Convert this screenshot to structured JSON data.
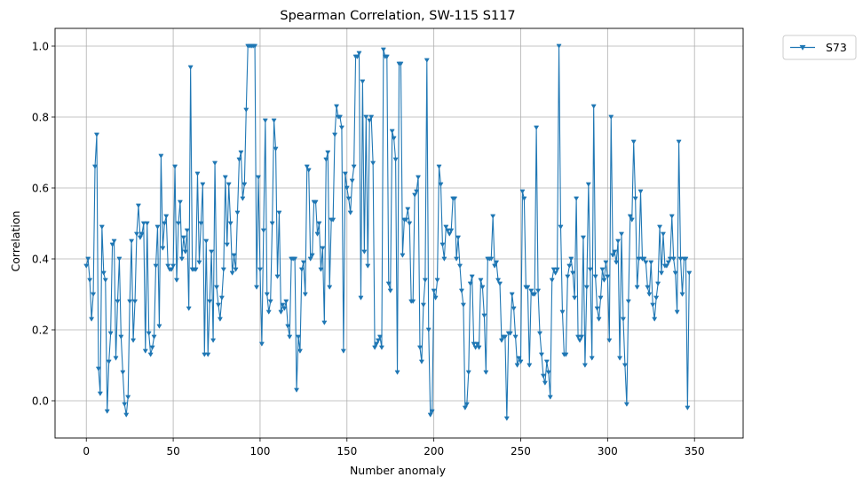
{
  "chart_data": {
    "type": "line",
    "title": "Spearman Correlation, SW-115  S117",
    "xlabel": "Number anomaly",
    "ylabel": "Correlation",
    "xlim": [
      -18,
      378
    ],
    "ylim": [
      -0.105,
      1.05
    ],
    "xticks": [
      0,
      50,
      100,
      150,
      200,
      250,
      300,
      350
    ],
    "yticks": [
      0.0,
      0.2,
      0.4,
      0.6,
      0.8,
      1.0
    ],
    "xtick_labels": [
      "0",
      "50",
      "100",
      "150",
      "200",
      "250",
      "300",
      "350"
    ],
    "ytick_labels": [
      "0.0",
      "0.2",
      "0.4",
      "0.6",
      "0.8",
      "1.0"
    ],
    "grid": true,
    "legend_position": "upper-right-outside",
    "marker": "triangle-down",
    "series": [
      {
        "name": "S73",
        "color": "#1f77b4",
        "x_start": 0,
        "values": [
          0.38,
          0.4,
          0.34,
          0.23,
          0.3,
          0.66,
          0.75,
          0.09,
          0.02,
          0.49,
          0.36,
          0.34,
          -0.03,
          0.11,
          0.19,
          0.44,
          0.45,
          0.12,
          0.28,
          0.4,
          0.18,
          0.08,
          -0.01,
          -0.04,
          0.01,
          0.28,
          0.45,
          0.17,
          0.28,
          0.47,
          0.55,
          0.46,
          0.47,
          0.5,
          0.14,
          0.5,
          0.19,
          0.13,
          0.15,
          0.18,
          0.38,
          0.49,
          0.21,
          0.69,
          0.43,
          0.5,
          0.52,
          0.38,
          0.37,
          0.37,
          0.38,
          0.66,
          0.34,
          0.5,
          0.56,
          0.4,
          0.46,
          0.42,
          0.48,
          0.26,
          0.94,
          0.37,
          0.37,
          0.37,
          0.64,
          0.39,
          0.5,
          0.61,
          0.13,
          0.45,
          0.13,
          0.28,
          0.42,
          0.17,
          0.67,
          0.32,
          0.27,
          0.23,
          0.29,
          0.37,
          0.63,
          0.44,
          0.61,
          0.5,
          0.36,
          0.41,
          0.37,
          0.53,
          0.68,
          0.7,
          0.57,
          0.61,
          0.82,
          1.0,
          1.0,
          1.0,
          1.0,
          1.0,
          0.32,
          0.63,
          0.37,
          0.16,
          0.48,
          0.79,
          0.3,
          0.25,
          0.28,
          0.5,
          0.79,
          0.71,
          0.35,
          0.53,
          0.25,
          0.27,
          0.26,
          0.28,
          0.21,
          0.18,
          0.4,
          0.4,
          0.4,
          0.03,
          0.18,
          0.14,
          0.37,
          0.39,
          0.3,
          0.66,
          0.65,
          0.4,
          0.41,
          0.56,
          0.56,
          0.47,
          0.5,
          0.37,
          0.43,
          0.22,
          0.68,
          0.7,
          0.32,
          0.51,
          0.51,
          0.75,
          0.83,
          0.8,
          0.8,
          0.77,
          0.14,
          0.64,
          0.6,
          0.57,
          0.53,
          0.62,
          0.66,
          0.97,
          0.97,
          0.98,
          0.29,
          0.9,
          0.42,
          0.8,
          0.38,
          0.79,
          0.8,
          0.67,
          0.15,
          0.16,
          0.17,
          0.18,
          0.15,
          0.99,
          0.97,
          0.97,
          0.33,
          0.31,
          0.76,
          0.74,
          0.68,
          0.08,
          0.95,
          0.95,
          0.41,
          0.51,
          0.51,
          0.54,
          0.5,
          0.28,
          0.28,
          0.58,
          0.59,
          0.63,
          0.15,
          0.11,
          0.27,
          0.34,
          0.96,
          0.2,
          -0.04,
          -0.03,
          0.31,
          0.29,
          0.34,
          0.66,
          0.61,
          0.44,
          0.4,
          0.49,
          0.48,
          0.47,
          0.48,
          0.57,
          0.57,
          0.4,
          0.46,
          0.38,
          0.31,
          0.27,
          -0.02,
          -0.01,
          0.08,
          0.33,
          0.35,
          0.16,
          0.15,
          0.16,
          0.15,
          0.34,
          0.32,
          0.24,
          0.08,
          0.4,
          0.4,
          0.4,
          0.52,
          0.38,
          0.39,
          0.34,
          0.33,
          0.17,
          0.18,
          0.18,
          -0.05,
          0.19,
          0.19,
          0.3,
          0.26,
          0.18,
          0.1,
          0.12,
          0.11,
          0.59,
          0.57,
          0.32,
          0.32,
          0.1,
          0.31,
          0.3,
          0.3,
          0.77,
          0.31,
          0.19,
          0.13,
          0.07,
          0.05,
          0.11,
          0.08,
          0.01,
          0.34,
          0.37,
          0.36,
          0.37,
          1.0,
          0.49,
          0.25,
          0.13,
          0.13,
          0.35,
          0.38,
          0.4,
          0.36,
          0.29,
          0.57,
          0.18,
          0.17,
          0.18,
          0.46,
          0.1,
          0.32,
          0.61,
          0.37,
          0.12,
          0.83,
          0.35,
          0.26,
          0.23,
          0.29,
          0.37,
          0.34,
          0.39,
          0.35,
          0.17,
          0.8,
          0.41,
          0.42,
          0.39,
          0.45,
          0.12,
          0.47,
          0.23,
          0.1,
          -0.01,
          0.28,
          0.52,
          0.51,
          0.73,
          0.57,
          0.32,
          0.4,
          0.59,
          0.4,
          0.4,
          0.39,
          0.32,
          0.3,
          0.39,
          0.27,
          0.23,
          0.29,
          0.33,
          0.49,
          0.36,
          0.47,
          0.38,
          0.38,
          0.39,
          0.4,
          0.52,
          0.4,
          0.36,
          0.25,
          0.73,
          0.4,
          0.3,
          0.4,
          0.4,
          -0.02,
          0.36
        ]
      }
    ]
  }
}
